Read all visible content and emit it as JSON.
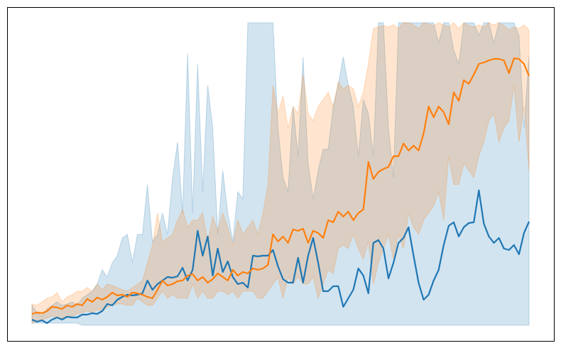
{
  "chart_data": {
    "type": "line",
    "x": [
      0,
      1,
      2,
      3,
      4,
      5,
      6,
      7,
      8,
      9,
      10,
      11,
      12,
      13,
      14,
      15,
      16,
      17,
      18,
      19,
      20,
      21,
      22,
      23,
      24,
      25,
      26,
      27,
      28,
      29,
      30,
      31,
      32,
      33,
      34,
      35,
      36,
      37,
      38,
      39,
      40,
      41,
      42,
      43,
      44,
      45,
      46,
      47,
      48,
      49,
      50,
      51,
      52,
      53,
      54,
      55,
      56,
      57,
      58,
      59,
      60,
      61,
      62,
      63,
      64,
      65,
      66,
      67,
      68,
      69,
      70,
      71,
      72,
      73,
      74,
      75,
      76,
      77,
      78,
      79,
      80,
      81,
      82,
      83,
      84,
      85,
      86,
      87,
      88,
      89,
      90,
      91,
      92,
      93,
      94,
      95,
      96,
      97,
      98,
      99
    ],
    "xlim": [
      -4.95,
      103.95
    ],
    "ylim": [
      0,
      470
    ],
    "series": [
      {
        "color": "#1f77b4",
        "values": [
          30,
          27,
          29,
          25,
          30,
          33,
          30,
          34,
          33,
          33,
          37,
          37,
          39,
          38,
          42,
          52,
          50,
          58,
          62,
          65,
          64,
          65,
          67,
          85,
          72,
          80,
          85,
          90,
          89,
          91,
          103,
          85,
          100,
          155,
          120,
          147,
          92,
          130,
          97,
          112,
          90,
          80,
          82,
          75,
          120,
          119,
          120,
          120,
          128,
          105,
          87,
          82,
          82,
          117,
          82,
          120,
          145,
          110,
          70,
          70,
          77,
          77,
          48,
          60,
          72,
          102,
          92,
          67,
          138,
          142,
          130,
          88,
          110,
          138,
          145,
          160,
          120,
          82,
          58,
          65,
          85,
          100,
          135,
          162,
          167,
          147,
          160,
          166,
          167,
          212,
          165,
          147,
          138,
          145,
          130,
          128,
          135,
          122,
          152,
          168
        ],
        "upper": [
          50,
          40,
          35,
          45,
          50,
          55,
          50,
          52,
          55,
          50,
          60,
          65,
          70,
          80,
          100,
          90,
          110,
          120,
          145,
          150,
          110,
          150,
          150,
          220,
          140,
          150,
          180,
          150,
          230,
          280,
          180,
          405,
          180,
          390,
          210,
          360,
          300,
          150,
          240,
          180,
          140,
          210,
          200,
          448,
          448,
          448,
          448,
          448,
          448,
          300,
          230,
          210,
          330,
          260,
          400,
          250,
          200,
          240,
          270,
          270,
          330,
          360,
          400,
          360,
          330,
          260,
          340,
          320,
          260,
          448,
          448,
          300,
          230,
          448,
          448,
          448,
          448,
          448,
          448,
          448,
          448,
          420,
          448,
          448,
          410,
          390,
          448,
          448,
          448,
          430,
          448,
          448,
          420,
          448,
          448,
          448,
          448,
          430,
          300,
          400
        ],
        "lower": [
          25,
          25,
          25,
          25,
          25,
          25,
          25,
          25,
          25,
          25,
          22,
          22,
          22,
          22,
          22,
          22,
          22,
          22,
          22,
          22,
          22,
          22,
          22,
          22,
          22,
          22,
          22,
          22,
          22,
          22,
          22,
          22,
          22,
          22,
          22,
          22,
          22,
          22,
          22,
          22,
          22,
          22,
          22,
          22,
          22,
          22,
          22,
          22,
          22,
          22,
          22,
          22,
          22,
          22,
          22,
          22,
          22,
          22,
          22,
          22,
          22,
          22,
          22,
          22,
          22,
          22,
          22,
          22,
          22,
          22,
          22,
          22,
          22,
          22,
          22,
          22,
          22,
          22,
          22,
          22,
          22,
          22,
          22,
          22,
          22,
          22,
          22,
          22,
          22,
          22,
          22,
          22,
          22,
          22,
          22,
          22,
          22,
          22,
          22,
          22
        ]
      },
      {
        "color": "#ff7f0e",
        "values": [
          38,
          40,
          39,
          42,
          48,
          47,
          45,
          50,
          48,
          52,
          50,
          59,
          55,
          61,
          58,
          62,
          68,
          64,
          65,
          62,
          68,
          67,
          65,
          62,
          60,
          72,
          85,
          78,
          80,
          84,
          85,
          92,
          94,
          85,
          90,
          82,
          87,
          95,
          90,
          85,
          100,
          92,
          97,
          95,
          102,
          100,
          102,
          107,
          150,
          140,
          147,
          138,
          157,
          155,
          158,
          138,
          155,
          152,
          145,
          170,
          167,
          182,
          175,
          182,
          170,
          180,
          185,
          252,
          228,
          238,
          242,
          245,
          260,
          260,
          278,
          268,
          275,
          268,
          292,
          330,
          315,
          330,
          322,
          305,
          350,
          338,
          367,
          362,
          375,
          390,
          392,
          395,
          397,
          397,
          395,
          377,
          398,
          397,
          390,
          373
        ],
        "upper": [
          52,
          50,
          55,
          60,
          62,
          68,
          55,
          62,
          65,
          70,
          70,
          75,
          70,
          80,
          72,
          80,
          78,
          75,
          72,
          70,
          75,
          80,
          85,
          110,
          135,
          180,
          140,
          145,
          150,
          170,
          185,
          160,
          170,
          170,
          180,
          140,
          175,
          155,
          180,
          160,
          135,
          170,
          150,
          160,
          170,
          150,
          180,
          220,
          360,
          320,
          345,
          300,
          330,
          320,
          375,
          320,
          310,
          330,
          340,
          350,
          330,
          365,
          355,
          360,
          355,
          330,
          350,
          390,
          440,
          442,
          444,
          442,
          445,
          440,
          448,
          448,
          445,
          440,
          448,
          446,
          444,
          448,
          445,
          442,
          448,
          440,
          448,
          444,
          442,
          445,
          442,
          448,
          445,
          448,
          444,
          438,
          442,
          440,
          445,
          438
        ],
        "lower": [
          25,
          28,
          30,
          32,
          35,
          32,
          32,
          35,
          35,
          38,
          40,
          42,
          40,
          44,
          42,
          48,
          50,
          52,
          52,
          50,
          50,
          60,
          55,
          50,
          50,
          60,
          70,
          60,
          65,
          60,
          60,
          60,
          80,
          60,
          70,
          60,
          60,
          70,
          70,
          65,
          70,
          60,
          70,
          70,
          70,
          60,
          60,
          70,
          80,
          90,
          60,
          90,
          80,
          90,
          80,
          80,
          90,
          60,
          80,
          100,
          95,
          130,
          135,
          130,
          150,
          130,
          115,
          140,
          80,
          110,
          130,
          150,
          115,
          150,
          130,
          180,
          160,
          150,
          170,
          180,
          190,
          210,
          170,
          260,
          220,
          220,
          250,
          240,
          230,
          260,
          280,
          310,
          320,
          280,
          300,
          310,
          360,
          280,
          330,
          240
        ]
      }
    ]
  }
}
